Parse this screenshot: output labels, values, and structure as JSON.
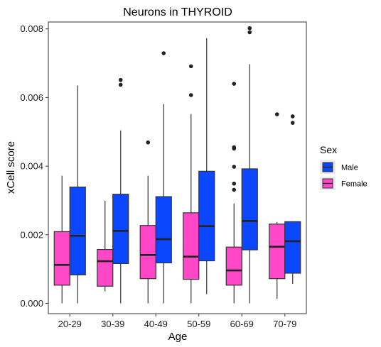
{
  "chart_data": {
    "type": "boxplot",
    "title": "Neurons in THYROID",
    "xlabel": "Age",
    "ylabel": "xCell score",
    "ylim": [
      -0.0003,
      0.0082
    ],
    "yticks": [
      "0.000",
      "0.002",
      "0.004",
      "0.006",
      "0.008"
    ],
    "ytick_values": [
      0,
      0.002,
      0.004,
      0.006,
      0.008
    ],
    "categories": [
      "20-29",
      "30-39",
      "40-49",
      "50-59",
      "60-69",
      "70-79"
    ],
    "grid": false,
    "legend": {
      "title": "Sex",
      "position": "right",
      "entries": [
        {
          "label": "Male",
          "color": "#0a47ff"
        },
        {
          "label": "Female",
          "color": "#ff47c8"
        }
      ]
    },
    "series": [
      {
        "name": "Female",
        "color": "#ff47c8",
        "boxes": [
          {
            "q1": 0.00053,
            "median": 0.00112,
            "q3": 0.00209,
            "lower": 0.0,
            "upper": 0.00372,
            "outliers": []
          },
          {
            "q1": 0.0005,
            "median": 0.00123,
            "q3": 0.00157,
            "lower": 0.00035,
            "upper": 0.00299,
            "outliers": []
          },
          {
            "q1": 0.00072,
            "median": 0.00141,
            "q3": 0.00227,
            "lower": 0.0,
            "upper": 0.00372,
            "outliers": [
              0.00469
            ]
          },
          {
            "q1": 0.0007,
            "median": 0.00136,
            "q3": 0.00264,
            "lower": 0.0,
            "upper": 0.00552,
            "outliers": [
              0.00607,
              0.00691
            ]
          },
          {
            "q1": 0.00053,
            "median": 0.00096,
            "q3": 0.00164,
            "lower": 0.0,
            "upper": 0.00291,
            "outliers": [
              0.00331,
              0.00349,
              0.00398,
              0.00451,
              0.00455,
              0.0064
            ]
          },
          {
            "q1": 0.00072,
            "median": 0.00165,
            "q3": 0.00231,
            "lower": 0.00013,
            "upper": 0.00237,
            "outliers": [
              0.00551
            ]
          }
        ]
      },
      {
        "name": "Male",
        "color": "#0a47ff",
        "boxes": [
          {
            "q1": 0.00083,
            "median": 0.00197,
            "q3": 0.00339,
            "lower": 0.0,
            "upper": 0.00635,
            "outliers": []
          },
          {
            "q1": 0.00116,
            "median": 0.00211,
            "q3": 0.00318,
            "lower": 0.0,
            "upper": 0.00504,
            "outliers": [
              0.00637,
              0.00651
            ]
          },
          {
            "q1": 0.00118,
            "median": 0.00187,
            "q3": 0.00311,
            "lower": 0.0,
            "upper": 0.00581,
            "outliers": [
              0.00729
            ]
          },
          {
            "q1": 0.00124,
            "median": 0.00225,
            "q3": 0.00385,
            "lower": 0.00027,
            "upper": 0.00773,
            "outliers": []
          },
          {
            "q1": 0.00156,
            "median": 0.0024,
            "q3": 0.00392,
            "lower": 0.0,
            "upper": 0.00697,
            "outliers": [
              0.0079,
              0.00802
            ]
          },
          {
            "q1": 0.00088,
            "median": 0.00181,
            "q3": 0.00238,
            "lower": 0.00057,
            "upper": 0.00238,
            "outliers": [
              0.00526,
              0.00545
            ]
          }
        ]
      }
    ]
  }
}
